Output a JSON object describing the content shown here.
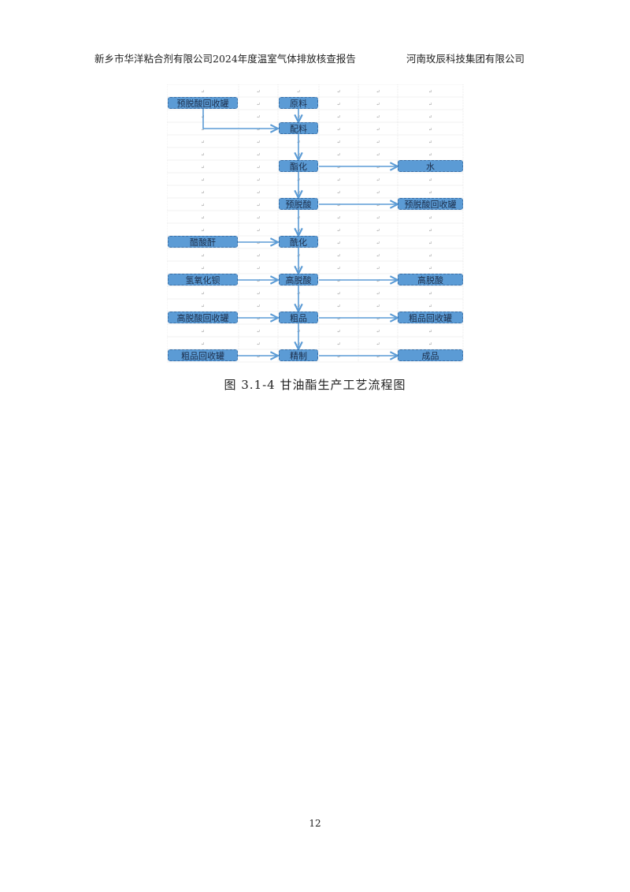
{
  "header": {
    "left": "新乡市华洋粘合剂有限公司2024年度温室气体排放核查报告",
    "right": "河南玫辰科技集团有限公司"
  },
  "figure": {
    "cell_mark": "↵",
    "nodes": {
      "pre_deacid_tank_in": "预脱酸回收罐",
      "raw": "原料",
      "mix": "配料",
      "ester": "酯化",
      "water": "水",
      "pre_deacid": "预脱酸",
      "pre_deacid_tank_out": "预脱酸回收罐",
      "acetic_anhydride": "醋酸酐",
      "acyl": "酰化",
      "barium_hydroxide": "氢氧化钡",
      "high_deacid": "高脱酸",
      "high_deacid_out": "高脱酸",
      "high_deacid_tank": "高脱酸回收罐",
      "crude": "粗品",
      "crude_tank_out": "粗品回收罐",
      "crude_tank_in": "粗品回收罐",
      "refine": "精制",
      "product": "成品"
    },
    "line_color": "#5b9bd5",
    "box_color": "#5b9bd5"
  },
  "caption": "图 3.1-4 甘油酯生产工艺流程图",
  "page_number": "12"
}
